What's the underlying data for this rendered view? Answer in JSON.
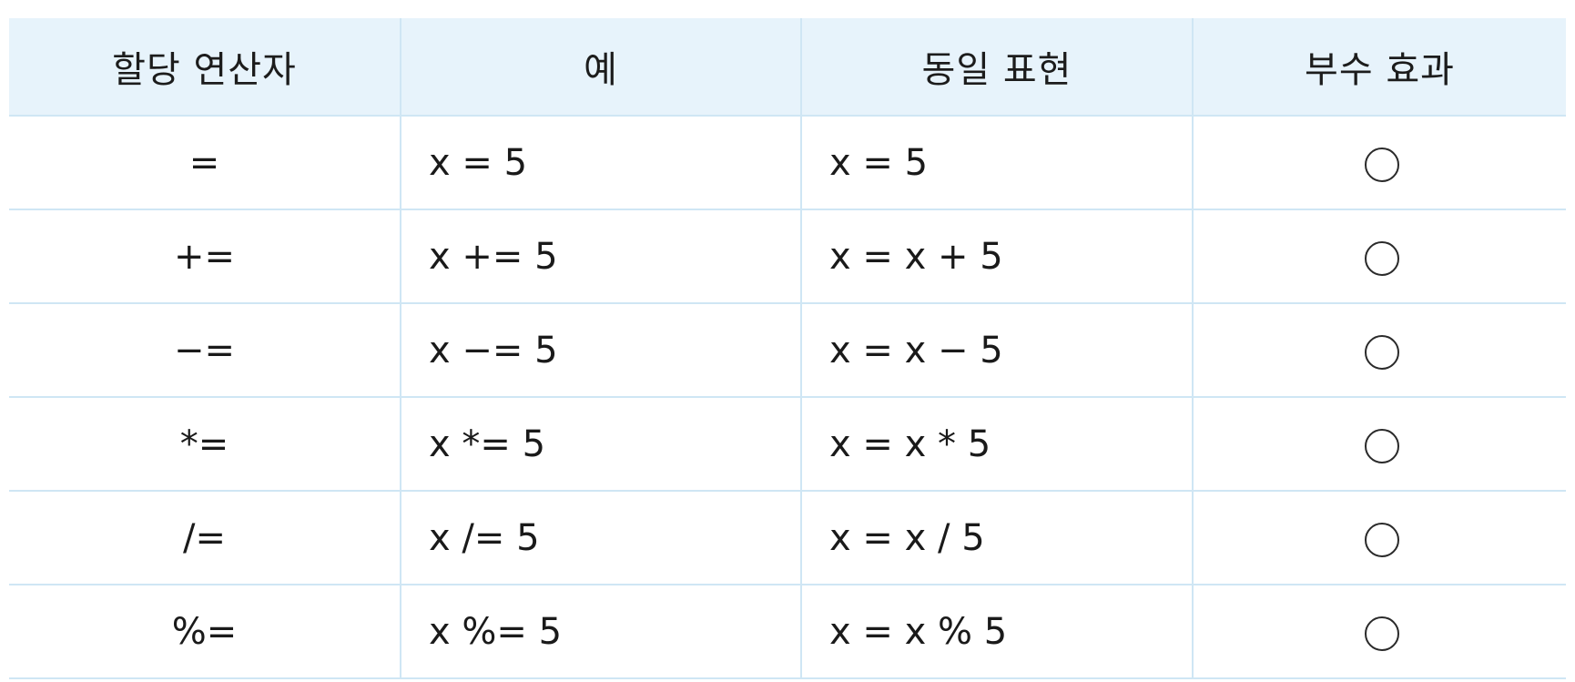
{
  "table": {
    "headers": [
      "할당 연산자",
      "예",
      "동일 표현",
      "부수 효과"
    ],
    "rows": [
      {
        "operator": "=",
        "example": "x = 5",
        "equivalent": "x = 5",
        "side_effect": "○"
      },
      {
        "operator": "+=",
        "example": "x += 5",
        "equivalent": "x = x + 5",
        "side_effect": "○"
      },
      {
        "operator": "−=",
        "example": "x −= 5",
        "equivalent": "x = x − 5",
        "side_effect": "○"
      },
      {
        "operator": "*=",
        "example": "x *= 5",
        "equivalent": "x = x * 5",
        "side_effect": "○"
      },
      {
        "operator": "/=",
        "example": "x /= 5",
        "equivalent": "x = x / 5",
        "side_effect": "○"
      },
      {
        "operator": "%=",
        "example": "x %= 5",
        "equivalent": "x = x % 5",
        "side_effect": "○"
      }
    ]
  },
  "colors": {
    "header_bg": "#e7f3fb",
    "grid_line": "#cfe6f4"
  }
}
